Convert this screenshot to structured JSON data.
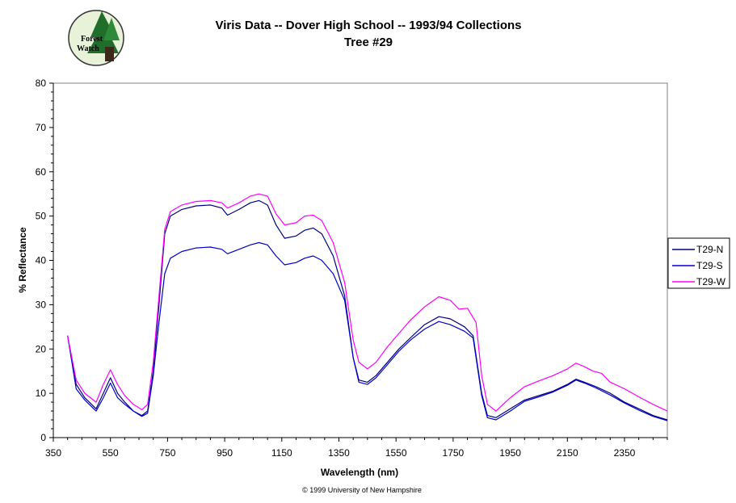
{
  "logo": {
    "line1": "Forest",
    "line2": "Watch"
  },
  "chart_data": {
    "type": "line",
    "title": "Viris Data -- Dover High School -- 1993/94 Collections",
    "subtitle": "Tree #29",
    "xlabel": "Wavelength (nm)",
    "ylabel": "% Reflectance",
    "xlim": [
      350,
      2500
    ],
    "ylim": [
      0,
      80
    ],
    "x_ticks": [
      350,
      550,
      750,
      950,
      1150,
      1350,
      1550,
      1750,
      1950,
      2150,
      2350
    ],
    "y_ticks": [
      0,
      10,
      20,
      30,
      40,
      50,
      60,
      70,
      80
    ],
    "grid": false,
    "legend_position": "right",
    "series": [
      {
        "name": "T29-N",
        "color": "#000080",
        "points": [
          [
            400,
            23
          ],
          [
            430,
            12
          ],
          [
            460,
            9
          ],
          [
            500,
            6.5
          ],
          [
            525,
            10
          ],
          [
            550,
            13.5
          ],
          [
            575,
            10
          ],
          [
            600,
            8
          ],
          [
            630,
            6
          ],
          [
            660,
            5
          ],
          [
            680,
            6
          ],
          [
            700,
            15
          ],
          [
            720,
            30
          ],
          [
            740,
            46
          ],
          [
            760,
            50
          ],
          [
            800,
            51.5
          ],
          [
            850,
            52.3
          ],
          [
            900,
            52.5
          ],
          [
            940,
            51.8
          ],
          [
            960,
            50.2
          ],
          [
            1000,
            51.5
          ],
          [
            1040,
            53
          ],
          [
            1070,
            53.5
          ],
          [
            1100,
            52.5
          ],
          [
            1130,
            48
          ],
          [
            1160,
            45
          ],
          [
            1200,
            45.5
          ],
          [
            1230,
            46.8
          ],
          [
            1260,
            47.3
          ],
          [
            1290,
            46
          ],
          [
            1330,
            41
          ],
          [
            1370,
            32
          ],
          [
            1400,
            18
          ],
          [
            1420,
            13
          ],
          [
            1450,
            12.5
          ],
          [
            1480,
            14
          ],
          [
            1520,
            17
          ],
          [
            1560,
            20
          ],
          [
            1600,
            22.5
          ],
          [
            1650,
            25.5
          ],
          [
            1700,
            27.3
          ],
          [
            1740,
            26.8
          ],
          [
            1790,
            25
          ],
          [
            1820,
            23
          ],
          [
            1850,
            10
          ],
          [
            1870,
            5
          ],
          [
            1900,
            4.5
          ],
          [
            1950,
            6.5
          ],
          [
            2000,
            8.5
          ],
          [
            2050,
            9.5
          ],
          [
            2100,
            10.5
          ],
          [
            2150,
            12
          ],
          [
            2180,
            13.2
          ],
          [
            2210,
            12.5
          ],
          [
            2250,
            11.5
          ],
          [
            2300,
            10
          ],
          [
            2350,
            8
          ],
          [
            2400,
            6.5
          ],
          [
            2450,
            5
          ],
          [
            2500,
            4
          ]
        ]
      },
      {
        "name": "T29-S",
        "color": "#0000cc",
        "points": [
          [
            400,
            23
          ],
          [
            430,
            11
          ],
          [
            460,
            8.5
          ],
          [
            500,
            6
          ],
          [
            525,
            9
          ],
          [
            550,
            12.3
          ],
          [
            575,
            9
          ],
          [
            600,
            7.5
          ],
          [
            630,
            6
          ],
          [
            660,
            4.8
          ],
          [
            680,
            5.5
          ],
          [
            700,
            14
          ],
          [
            720,
            26
          ],
          [
            740,
            37
          ],
          [
            760,
            40.5
          ],
          [
            800,
            42
          ],
          [
            850,
            42.8
          ],
          [
            900,
            43
          ],
          [
            940,
            42.5
          ],
          [
            960,
            41.5
          ],
          [
            1000,
            42.5
          ],
          [
            1040,
            43.5
          ],
          [
            1070,
            44
          ],
          [
            1100,
            43.5
          ],
          [
            1130,
            41
          ],
          [
            1160,
            39
          ],
          [
            1200,
            39.5
          ],
          [
            1230,
            40.5
          ],
          [
            1260,
            41
          ],
          [
            1290,
            40
          ],
          [
            1330,
            37
          ],
          [
            1370,
            31
          ],
          [
            1400,
            18
          ],
          [
            1420,
            12.5
          ],
          [
            1450,
            12
          ],
          [
            1480,
            13.5
          ],
          [
            1520,
            16.5
          ],
          [
            1560,
            19.5
          ],
          [
            1600,
            22
          ],
          [
            1650,
            24.5
          ],
          [
            1700,
            26.2
          ],
          [
            1740,
            25.5
          ],
          [
            1790,
            24
          ],
          [
            1820,
            22.5
          ],
          [
            1850,
            9.5
          ],
          [
            1870,
            4.5
          ],
          [
            1900,
            4
          ],
          [
            1950,
            6
          ],
          [
            2000,
            8.2
          ],
          [
            2050,
            9.2
          ],
          [
            2100,
            10.3
          ],
          [
            2150,
            11.8
          ],
          [
            2180,
            13
          ],
          [
            2210,
            12.3
          ],
          [
            2250,
            11.2
          ],
          [
            2300,
            9.6
          ],
          [
            2350,
            7.8
          ],
          [
            2400,
            6.2
          ],
          [
            2450,
            4.8
          ],
          [
            2500,
            3.8
          ]
        ]
      },
      {
        "name": "T29-W",
        "color": "#ff00ff",
        "points": [
          [
            400,
            23
          ],
          [
            430,
            13
          ],
          [
            460,
            10
          ],
          [
            500,
            8
          ],
          [
            525,
            12
          ],
          [
            550,
            15.3
          ],
          [
            575,
            12
          ],
          [
            600,
            9.5
          ],
          [
            630,
            7.5
          ],
          [
            660,
            6.3
          ],
          [
            680,
            7.5
          ],
          [
            700,
            17
          ],
          [
            720,
            32
          ],
          [
            740,
            47
          ],
          [
            760,
            51
          ],
          [
            800,
            52.5
          ],
          [
            850,
            53.3
          ],
          [
            900,
            53.5
          ],
          [
            940,
            53
          ],
          [
            960,
            51.8
          ],
          [
            1000,
            53
          ],
          [
            1040,
            54.5
          ],
          [
            1070,
            55
          ],
          [
            1100,
            54.5
          ],
          [
            1130,
            50.5
          ],
          [
            1160,
            48
          ],
          [
            1200,
            48.5
          ],
          [
            1230,
            50
          ],
          [
            1260,
            50.2
          ],
          [
            1290,
            49
          ],
          [
            1330,
            44
          ],
          [
            1370,
            35
          ],
          [
            1400,
            22
          ],
          [
            1420,
            17
          ],
          [
            1450,
            15.5
          ],
          [
            1480,
            17
          ],
          [
            1520,
            20.5
          ],
          [
            1560,
            23.5
          ],
          [
            1600,
            26.5
          ],
          [
            1650,
            29.5
          ],
          [
            1700,
            31.8
          ],
          [
            1740,
            31
          ],
          [
            1770,
            29
          ],
          [
            1800,
            29.2
          ],
          [
            1830,
            26
          ],
          [
            1850,
            14
          ],
          [
            1870,
            7.5
          ],
          [
            1900,
            6
          ],
          [
            1950,
            9
          ],
          [
            2000,
            11.5
          ],
          [
            2050,
            12.8
          ],
          [
            2100,
            14
          ],
          [
            2150,
            15.5
          ],
          [
            2180,
            16.8
          ],
          [
            2210,
            16
          ],
          [
            2240,
            15
          ],
          [
            2270,
            14.5
          ],
          [
            2300,
            12.5
          ],
          [
            2350,
            11
          ],
          [
            2400,
            9.2
          ],
          [
            2450,
            7.5
          ],
          [
            2500,
            6
          ]
        ]
      }
    ]
  },
  "footer": {
    "credit": "© 1999 University of New Hampshire"
  }
}
